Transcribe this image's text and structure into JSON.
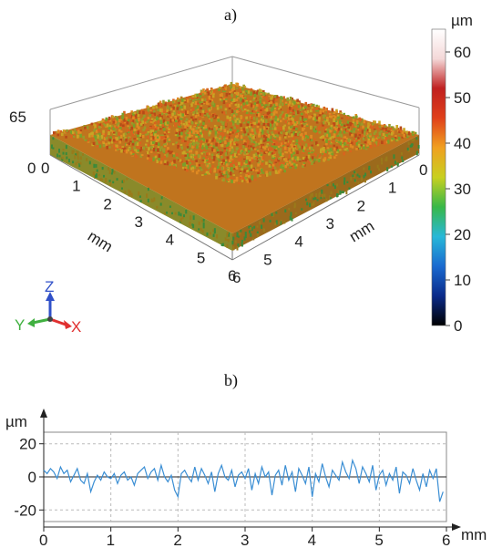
{
  "labels": {
    "a": "a)",
    "b": "b)"
  },
  "chart_data": [
    {
      "type": "heatmap",
      "title": "",
      "surface": {
        "x_label": "mm",
        "y_label": "mm",
        "x_ticks": [
          "0",
          "1",
          "2",
          "3",
          "4",
          "5",
          "6"
        ],
        "y_ticks": [
          "0",
          "1",
          "2",
          "3",
          "4",
          "5",
          "6"
        ],
        "z_top_label": "65",
        "z_bottom_label": "0",
        "z_range": [
          0,
          65
        ],
        "colors": [
          "#9a9a2a",
          "#d8641e",
          "#c8a524",
          "#7aa02a",
          "#b84a18",
          "#e08a22"
        ]
      },
      "colorbar": {
        "unit": "µm",
        "ticks": [
          "60",
          "50",
          "40",
          "30",
          "20",
          "10",
          "0"
        ],
        "range": [
          0,
          65
        ],
        "stops": [
          "#000000",
          "#0a2a8a",
          "#1a6ad0",
          "#28b8d8",
          "#38b848",
          "#c8d020",
          "#f0a020",
          "#e0401a",
          "#c02020",
          "#f4d8d8",
          "#ffffff"
        ]
      },
      "axis_triad": {
        "z": "Z",
        "y": "Y",
        "x": "X",
        "colors": {
          "z": "#3050c8",
          "y": "#40b040",
          "x": "#e03030"
        }
      }
    },
    {
      "type": "line",
      "title": "",
      "xlabel": "mm",
      "ylabel": "µm",
      "x_ticks": [
        "0",
        "1",
        "2",
        "3",
        "4",
        "5",
        "6"
      ],
      "y_ticks": [
        "20",
        "0",
        "-20"
      ],
      "xlim": [
        0,
        6
      ],
      "ylim": [
        -27,
        27
      ],
      "line_color": "#3a8ed4",
      "series": [
        {
          "x": [
            0.0,
            0.05,
            0.1,
            0.15,
            0.2,
            0.25,
            0.3,
            0.35,
            0.4,
            0.45,
            0.5,
            0.55,
            0.6,
            0.65,
            0.7,
            0.75,
            0.8,
            0.85,
            0.9,
            0.95,
            1.0,
            1.05,
            1.1,
            1.15,
            1.2,
            1.25,
            1.3,
            1.35,
            1.4,
            1.45,
            1.5,
            1.55,
            1.6,
            1.65,
            1.7,
            1.75,
            1.8,
            1.85,
            1.9,
            1.95,
            2.0,
            2.05,
            2.1,
            2.15,
            2.2,
            2.25,
            2.3,
            2.35,
            2.4,
            2.45,
            2.5,
            2.55,
            2.6,
            2.65,
            2.7,
            2.75,
            2.8,
            2.85,
            2.9,
            2.95,
            3.0,
            3.05,
            3.1,
            3.15,
            3.2,
            3.25,
            3.3,
            3.35,
            3.4,
            3.45,
            3.5,
            3.55,
            3.6,
            3.65,
            3.7,
            3.75,
            3.8,
            3.85,
            3.9,
            3.95,
            4.0,
            4.05,
            4.1,
            4.15,
            4.2,
            4.25,
            4.3,
            4.35,
            4.4,
            4.45,
            4.5,
            4.55,
            4.6,
            4.65,
            4.7,
            4.75,
            4.8,
            4.85,
            4.9,
            4.95,
            5.0,
            5.05,
            5.1,
            5.15,
            5.2,
            5.25,
            5.3,
            5.35,
            5.4,
            5.45,
            5.5,
            5.55,
            5.6,
            5.65,
            5.7,
            5.75,
            5.8,
            5.85,
            5.9,
            5.95
          ],
          "y": [
            4,
            2,
            5,
            3,
            -1,
            6,
            2,
            4,
            -3,
            1,
            5,
            -2,
            -4,
            2,
            -9,
            -3,
            1,
            -2,
            3,
            0,
            -1,
            2,
            -4,
            1,
            3,
            -2,
            0,
            -5,
            2,
            4,
            6,
            -1,
            3,
            5,
            -2,
            7,
            0,
            -3,
            1,
            -8,
            -12,
            2,
            4,
            0,
            -3,
            6,
            -2,
            5,
            1,
            -4,
            3,
            -9,
            2,
            7,
            0,
            -2,
            4,
            -6,
            1,
            3,
            -1,
            5,
            -8,
            2,
            -4,
            6,
            0,
            3,
            -11,
            1,
            4,
            -5,
            7,
            -2,
            3,
            -9,
            5,
            1,
            -4,
            6,
            -12,
            2,
            -3,
            8,
            0,
            -6,
            4,
            1,
            -2,
            9,
            3,
            -1,
            10,
            5,
            -4,
            6,
            2,
            -3,
            7,
            -8,
            1,
            4,
            -5,
            2,
            -2,
            6,
            -10,
            3,
            1,
            -4,
            5,
            -2,
            -8,
            2,
            -6,
            4,
            -1,
            5,
            -15,
            -9
          ]
        }
      ]
    }
  ]
}
